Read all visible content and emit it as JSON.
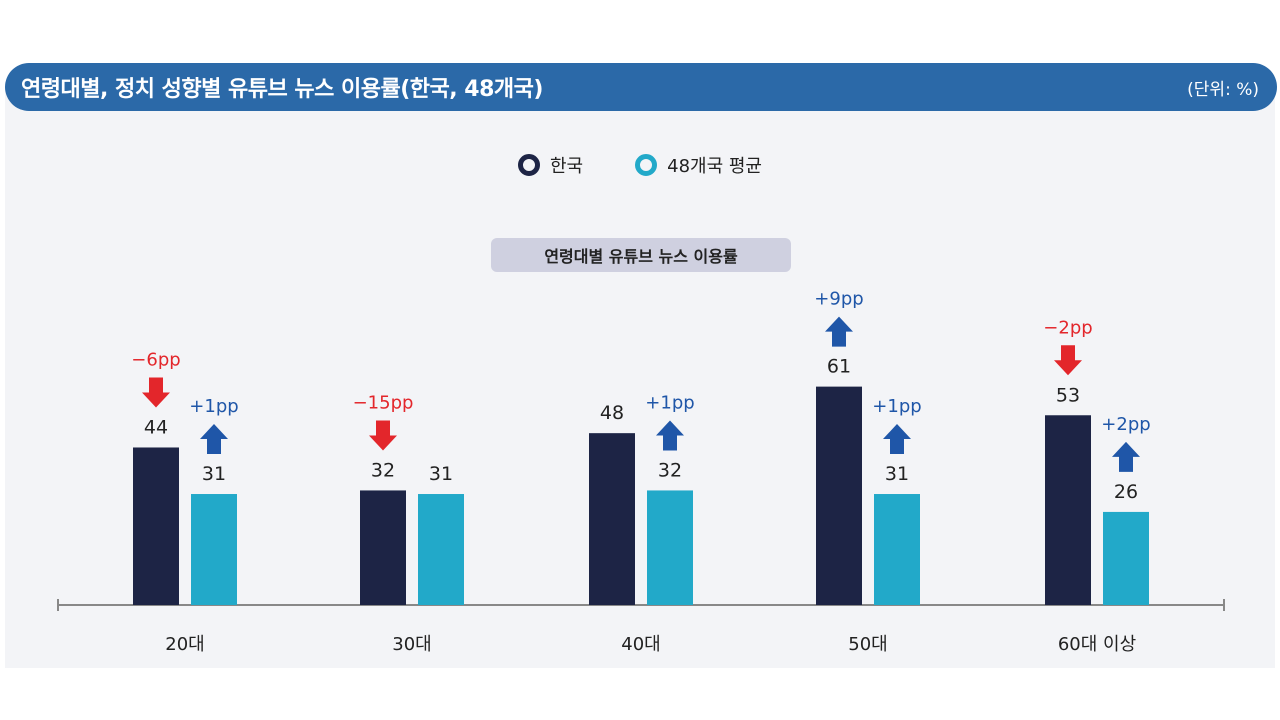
{
  "header": {
    "title": "연령대별, 정치 성향별 유튜브 뉴스 이용률(한국, 48개국)",
    "unit": "(단위: %)"
  },
  "colors": {
    "korea": "#1d2445",
    "average": "#22a9c9",
    "increase": "#1f56a8",
    "decrease": "#e3262b",
    "title_bar": "#2b69a8"
  },
  "chart_data": {
    "type": "bar",
    "title": "연령대별 유튜브 뉴스 이용률",
    "categories": [
      "20대",
      "30대",
      "40대",
      "50대",
      "60대 이상"
    ],
    "legend_position": "top-center",
    "grid": false,
    "ylim": [
      0,
      70
    ],
    "series": [
      {
        "name": "한국",
        "values": [
          44,
          32,
          48,
          61,
          53
        ],
        "changes": [
          "−6pp",
          "−15pp",
          "",
          "+9pp",
          "−2pp"
        ],
        "change_direction": [
          "down",
          "down",
          "",
          "up",
          "down"
        ]
      },
      {
        "name": "48개국 평균",
        "values": [
          31,
          31,
          32,
          31,
          26
        ],
        "changes": [
          "+1pp",
          "",
          "+1pp",
          "+1pp",
          "+2pp"
        ],
        "change_direction": [
          "up",
          "",
          "up",
          "up",
          "up"
        ]
      }
    ]
  }
}
